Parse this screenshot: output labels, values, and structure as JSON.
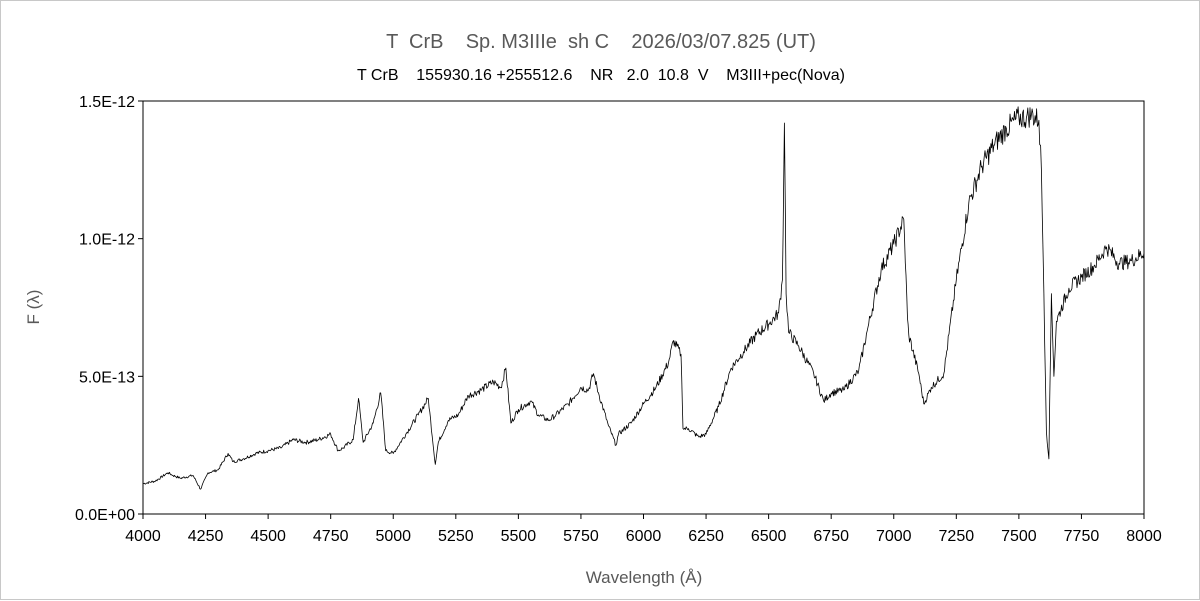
{
  "chart_data": {
    "type": "line",
    "title": "T  CrB    Sp. M3IIIe  sh C    2026/03/07.825 (UT)",
    "subtitle": "T CrB    155930.16 +255512.6    NR   2.0  10.8  V    M3III+pec(Nova)",
    "xlabel": "Wavelength (Å)",
    "ylabel": "F (λ)",
    "xlim": [
      4000,
      8000
    ],
    "ylim": [
      0,
      1.5e-12
    ],
    "x_ticks": [
      "4000",
      "4250",
      "4500",
      "4750",
      "5000",
      "5250",
      "5500",
      "5750",
      "6000",
      "6250",
      "6500",
      "6750",
      "7000",
      "7250",
      "7500",
      "7750",
      "8000"
    ],
    "y_ticks": [
      "0.0E+00",
      "5.0E-13",
      "1.0E-12",
      "1.5E-12"
    ],
    "grid": false,
    "line_color": "#000000",
    "series": [
      {
        "x": [
          4000,
          4050,
          4100,
          4120,
          4150,
          4200,
          4230,
          4260,
          4300,
          4340,
          4360,
          4400,
          4450,
          4500,
          4550,
          4600,
          4650,
          4700,
          4750,
          4780,
          4800,
          4840,
          4861,
          4880,
          4920,
          4950,
          4970,
          5000,
          5050,
          5100,
          5140,
          5168,
          5180,
          5220,
          5260,
          5300,
          5350,
          5400,
          5430,
          5450,
          5470,
          5500,
          5550,
          5580,
          5620,
          5650,
          5700,
          5750,
          5780,
          5800,
          5820,
          5860,
          5890,
          5900,
          5950,
          6000,
          6050,
          6100,
          6120,
          6150,
          6158,
          6180,
          6220,
          6250,
          6300,
          6350,
          6400,
          6450,
          6500,
          6540,
          6555,
          6563,
          6570,
          6580,
          6620,
          6680,
          6720,
          6750,
          6800,
          6860,
          6900,
          6950,
          7000,
          7040,
          7055,
          7060,
          7100,
          7120,
          7150,
          7200,
          7250,
          7300,
          7350,
          7400,
          7450,
          7500,
          7530,
          7550,
          7580,
          7590,
          7600,
          7610,
          7620,
          7630,
          7640,
          7650,
          7700,
          7750,
          7800,
          7850,
          7900,
          7950,
          8000
        ],
        "y": [
          1.1e-13,
          1.2e-13,
          1.5e-13,
          1.4e-13,
          1.3e-13,
          1.4e-13,
          9e-14,
          1.5e-13,
          1.6e-13,
          2.2e-13,
          1.9e-13,
          2e-13,
          2.2e-13,
          2.3e-13,
          2.4e-13,
          2.7e-13,
          2.6e-13,
          2.7e-13,
          2.9e-13,
          2.3e-13,
          2.4e-13,
          2.7e-13,
          4.2e-13,
          2.6e-13,
          3.3e-13,
          4.4e-13,
          2.3e-13,
          2.2e-13,
          2.9e-13,
          3.6e-13,
          4.2e-13,
          1.8e-13,
          2.6e-13,
          3.4e-13,
          3.6e-13,
          4.3e-13,
          4.5e-13,
          4.8e-13,
          4.6e-13,
          5.3e-13,
          3.3e-13,
          3.8e-13,
          4.1e-13,
          3.6e-13,
          3.4e-13,
          3.6e-13,
          4e-13,
          4.6e-13,
          4.5e-13,
          5.1e-13,
          4.4e-13,
          3.2e-13,
          2.5e-13,
          2.9e-13,
          3.3e-13,
          4e-13,
          4.6e-13,
          5.5e-13,
          6.3e-13,
          5.8e-13,
          3.1e-13,
          3.1e-13,
          2.8e-13,
          2.9e-13,
          3.9e-13,
          5.3e-13,
          5.9e-13,
          6.5e-13,
          6.9e-13,
          7.3e-13,
          8.5e-13,
          1.42e-12,
          8e-13,
          6.6e-13,
          6.1e-13,
          5.1e-13,
          4.1e-13,
          4.4e-13,
          4.5e-13,
          5.2e-13,
          6.9e-13,
          8.9e-13,
          9.8e-13,
          1.07e-12,
          7.1e-13,
          6.5e-13,
          5.1e-13,
          4e-13,
          4.6e-13,
          5.1e-13,
          8.5e-13,
          1.13e-12,
          1.26e-12,
          1.34e-12,
          1.4e-12,
          1.44e-12,
          1.44e-12,
          1.45e-12,
          1.43e-12,
          1.25e-12,
          8e-13,
          3e-13,
          2e-13,
          8e-13,
          5e-13,
          7e-13,
          8.2e-13,
          8.6e-13,
          9e-13,
          9.7e-13,
          9.1e-13,
          9.2e-13,
          9.5e-13
        ]
      }
    ]
  }
}
